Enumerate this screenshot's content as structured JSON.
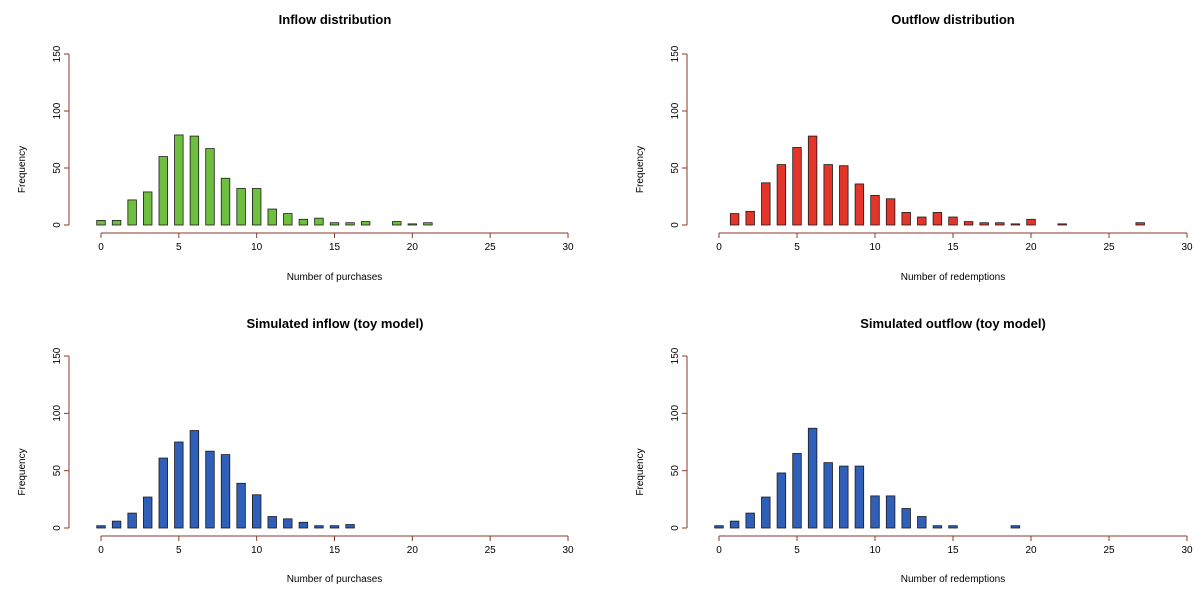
{
  "chart_data": [
    {
      "type": "bar",
      "title": "Inflow distribution",
      "xlabel": "Number of purchases",
      "ylabel": "Frequency",
      "xlim": [
        0,
        30
      ],
      "ylim": [
        0,
        150
      ],
      "xticks": [
        "0",
        "5",
        "10",
        "15",
        "20",
        "25",
        "30"
      ],
      "yticks": [
        "0",
        "50",
        "100",
        "150"
      ],
      "bar_color": "#6fbf3f",
      "x": [
        0,
        1,
        2,
        3,
        4,
        5,
        6,
        7,
        8,
        9,
        10,
        11,
        12,
        13,
        14,
        15,
        16,
        17,
        18,
        19,
        20,
        21
      ],
      "values": [
        4,
        4,
        22,
        29,
        60,
        79,
        78,
        67,
        41,
        32,
        32,
        14,
        10,
        5,
        6,
        2,
        2,
        3,
        0,
        3,
        1,
        2
      ]
    },
    {
      "type": "bar",
      "title": "Outflow distribution",
      "xlabel": "Number of redemptions",
      "ylabel": "Frequency",
      "xlim": [
        0,
        30
      ],
      "ylim": [
        0,
        150
      ],
      "xticks": [
        "0",
        "5",
        "10",
        "15",
        "20",
        "25",
        "30"
      ],
      "yticks": [
        "0",
        "50",
        "100",
        "150"
      ],
      "bar_color": "#e4352b",
      "x": [
        1,
        2,
        3,
        4,
        5,
        6,
        7,
        8,
        9,
        10,
        11,
        12,
        13,
        14,
        15,
        16,
        17,
        18,
        19,
        20,
        21,
        22,
        23,
        24,
        25,
        26,
        27
      ],
      "values": [
        10,
        12,
        37,
        53,
        68,
        78,
        53,
        52,
        36,
        26,
        23,
        11,
        7,
        11,
        7,
        3,
        2,
        2,
        1,
        5,
        0,
        1,
        0,
        0,
        0,
        0,
        2
      ]
    },
    {
      "type": "bar",
      "title": "Simulated inflow (toy model)",
      "xlabel": "Number of purchases",
      "ylabel": "Frequency",
      "xlim": [
        0,
        30
      ],
      "ylim": [
        0,
        150
      ],
      "xticks": [
        "0",
        "5",
        "10",
        "15",
        "20",
        "25",
        "30"
      ],
      "yticks": [
        "0",
        "50",
        "100",
        "150"
      ],
      "bar_color": "#2f5fb8",
      "x": [
        0,
        1,
        2,
        3,
        4,
        5,
        6,
        7,
        8,
        9,
        10,
        11,
        12,
        13,
        14,
        15,
        16
      ],
      "values": [
        2,
        6,
        13,
        27,
        61,
        75,
        85,
        67,
        64,
        39,
        29,
        10,
        8,
        5,
        2,
        2,
        3
      ]
    },
    {
      "type": "bar",
      "title": "Simulated outflow (toy model)",
      "xlabel": "Number of redemptions",
      "ylabel": "Frequency",
      "xlim": [
        0,
        30
      ],
      "ylim": [
        0,
        150
      ],
      "xticks": [
        "0",
        "5",
        "10",
        "15",
        "20",
        "25",
        "30"
      ],
      "yticks": [
        "0",
        "50",
        "100",
        "150"
      ],
      "bar_color": "#2f5fb8",
      "x": [
        0,
        1,
        2,
        3,
        4,
        5,
        6,
        7,
        8,
        9,
        10,
        11,
        12,
        13,
        14,
        15,
        16,
        17,
        18,
        19
      ],
      "values": [
        2,
        6,
        13,
        27,
        48,
        65,
        87,
        57,
        54,
        54,
        28,
        28,
        17,
        10,
        2,
        2,
        0,
        0,
        0,
        2
      ]
    }
  ]
}
